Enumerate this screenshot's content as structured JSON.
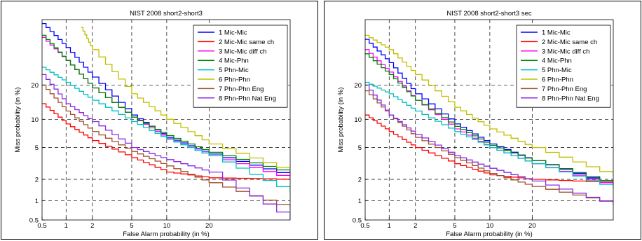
{
  "chart_data": [
    {
      "type": "line",
      "title": "NIST 2008 short2-short3",
      "xlabel": "False Alarm probability (in %)",
      "ylabel": "Miss probability (in %)",
      "xscale": "probit",
      "yscale": "probit",
      "xlim": [
        0.5,
        50
      ],
      "ylim": [
        0.5,
        50
      ],
      "xticks": [
        "0.5",
        "1",
        "2",
        "5",
        "10",
        "20"
      ],
      "yticks": [
        "0.5",
        "1",
        "2",
        "5",
        "10",
        "20"
      ],
      "grid": true,
      "legend_position": "top-right",
      "series": [
        {
          "name": "1 Mic-Mic",
          "color": "#0000ff",
          "x": [
            0.5,
            1,
            2,
            5,
            10,
            20,
            50
          ],
          "y": [
            48,
            36,
            23,
            11,
            6.5,
            4.2,
            2.2
          ]
        },
        {
          "name": "2 Mic-Mic same ch",
          "color": "#ff0000",
          "x": [
            0.5,
            1,
            2,
            5,
            10,
            20,
            50
          ],
          "y": [
            14,
            9,
            6,
            3.8,
            2.5,
            2.1,
            2.0
          ]
        },
        {
          "name": "3 Mic-Mic diff ch",
          "color": "#ff00ff",
          "x": [
            0.5,
            1,
            2,
            5,
            10,
            20,
            50
          ],
          "y": [
            41,
            30,
            19,
            10.5,
            6.3,
            4.0,
            2.0
          ]
        },
        {
          "name": "4 Mic-Phn",
          "color": "#008000",
          "x": [
            0.5,
            1,
            2,
            5,
            10,
            20,
            50
          ],
          "y": [
            42,
            30,
            19,
            10.5,
            6.8,
            4.4,
            2.4
          ]
        },
        {
          "name": "5 Phn-Mic",
          "color": "#00c0c0",
          "x": [
            0.5,
            1,
            2,
            5,
            10,
            20,
            50
          ],
          "y": [
            27,
            21,
            15,
            9.5,
            6.2,
            4.0,
            1.3
          ]
        },
        {
          "name": "6 Phn-Phn",
          "color": "#c0c000",
          "x": [
            1.5,
            2,
            5,
            10,
            20,
            50
          ],
          "y": [
            46,
            35,
            17,
            10,
            5.5,
            2.5
          ]
        },
        {
          "name": "7 Phn-Phn Eng",
          "color": "#a0522d",
          "x": [
            0.5,
            1,
            2,
            5,
            10,
            20,
            50
          ],
          "y": [
            20,
            12,
            7.5,
            4.5,
            3.0,
            1.8,
            0.75
          ]
        },
        {
          "name": "8 Phn-Phn Nat Eng",
          "color": "#8a2be2",
          "x": [
            0.5,
            1,
            2,
            5,
            10,
            20,
            50
          ],
          "y": [
            24,
            14,
            9.5,
            5.0,
            3.6,
            2.5,
            0.5
          ]
        }
      ]
    },
    {
      "type": "line",
      "title": "NIST 2008 short2-short3 sec",
      "xlabel": "False Alarm probability (in %)",
      "ylabel": "Miss probability (in %)",
      "xscale": "probit",
      "yscale": "probit",
      "xlim": [
        0.5,
        50
      ],
      "ylim": [
        0.5,
        50
      ],
      "xticks": [
        "0.5",
        "1",
        "2",
        "5",
        "10",
        "20"
      ],
      "yticks": [
        "0.5",
        "1",
        "2",
        "5",
        "10",
        "20"
      ],
      "grid": true,
      "legend_position": "top-right",
      "series": [
        {
          "name": "1 Mic-Mic",
          "color": "#0000ff",
          "x": [
            0.5,
            1,
            2,
            5,
            10,
            20,
            50
          ],
          "y": [
            40,
            29,
            17,
            9,
            5.5,
            3.5,
            1.6
          ]
        },
        {
          "name": "2 Mic-Mic same ch",
          "color": "#ff0000",
          "x": [
            0.5,
            1,
            2,
            5,
            10,
            20,
            50
          ],
          "y": [
            11,
            7.5,
            5.0,
            3.2,
            2.3,
            2.0,
            1.8
          ]
        },
        {
          "name": "3 Mic-Mic diff ch",
          "color": "#ff00ff",
          "x": [
            0.5,
            1,
            2,
            5,
            10,
            20,
            50
          ],
          "y": [
            35,
            25,
            15,
            8,
            5.0,
            3.2,
            1.6
          ]
        },
        {
          "name": "4 Mic-Phn",
          "color": "#008000",
          "x": [
            0.5,
            1,
            2,
            5,
            10,
            20,
            50
          ],
          "y": [
            33,
            24,
            15,
            8.5,
            5.3,
            3.5,
            1.7
          ]
        },
        {
          "name": "5 Phn-Mic",
          "color": "#00c0c0",
          "x": [
            0.5,
            1,
            2,
            5,
            10,
            20,
            50
          ],
          "y": [
            21,
            17,
            12,
            7.5,
            5.0,
            3.2,
            1.5
          ]
        },
        {
          "name": "6 Phn-Phn",
          "color": "#c0c000",
          "x": [
            0.5,
            1,
            2,
            5,
            10,
            20,
            50
          ],
          "y": [
            42,
            35,
            24,
            13,
            8.0,
            5.0,
            2.2
          ]
        },
        {
          "name": "7 Phn-Phn Eng",
          "color": "#a0522d",
          "x": [
            0.5,
            1,
            2,
            5,
            10,
            20,
            50
          ],
          "y": [
            18,
            11,
            6.5,
            3.8,
            2.4,
            1.6,
            0.9
          ]
        },
        {
          "name": "8 Phn-Phn Nat Eng",
          "color": "#8a2be2",
          "x": [
            0.5,
            1,
            2,
            5,
            10,
            20,
            50
          ],
          "y": [
            20,
            11,
            7.0,
            4.0,
            2.8,
            1.9,
            0.85
          ]
        }
      ]
    }
  ]
}
